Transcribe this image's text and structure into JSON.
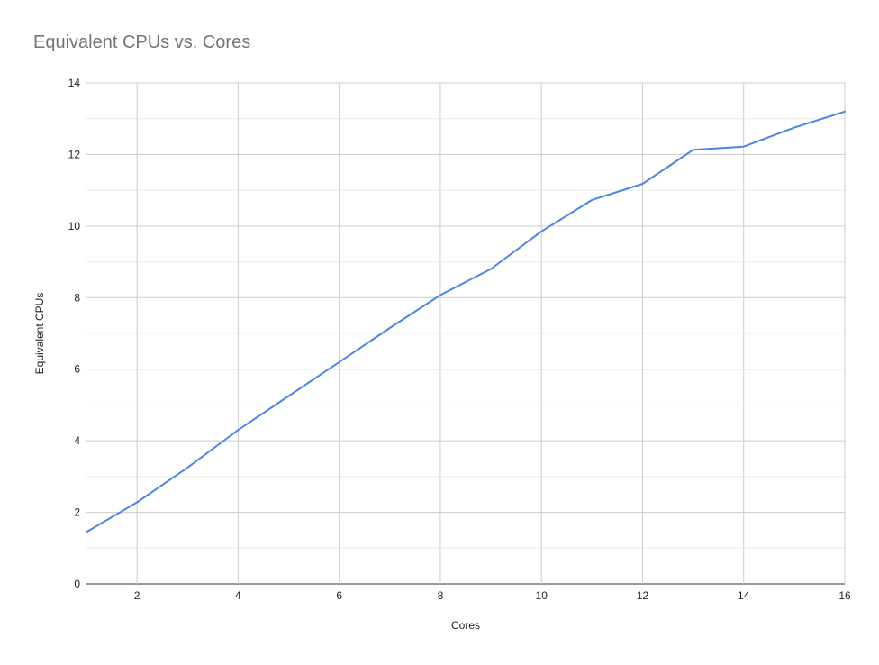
{
  "chart_data": {
    "type": "line",
    "title": "Equivalent CPUs vs. Cores",
    "xlabel": "Cores",
    "ylabel": "Equivalent CPUs",
    "xlim": [
      1,
      16
    ],
    "ylim": [
      0,
      14
    ],
    "x_ticks": [
      2,
      4,
      6,
      8,
      10,
      12,
      14,
      16
    ],
    "y_ticks": [
      0,
      2,
      4,
      6,
      8,
      10,
      12,
      14
    ],
    "y_minor_step": 1,
    "grid": true,
    "legend": "none",
    "series": [
      {
        "color": "#4a86e8",
        "x": [
          1,
          2,
          3,
          4,
          5,
          6,
          7,
          8,
          9,
          10,
          11,
          12,
          13,
          14,
          15,
          16
        ],
        "values": [
          1.45,
          2.28,
          3.25,
          4.3,
          5.25,
          6.2,
          7.15,
          8.07,
          8.8,
          9.85,
          10.73,
          11.18,
          12.13,
          12.22,
          12.75,
          13.2
        ]
      }
    ]
  }
}
